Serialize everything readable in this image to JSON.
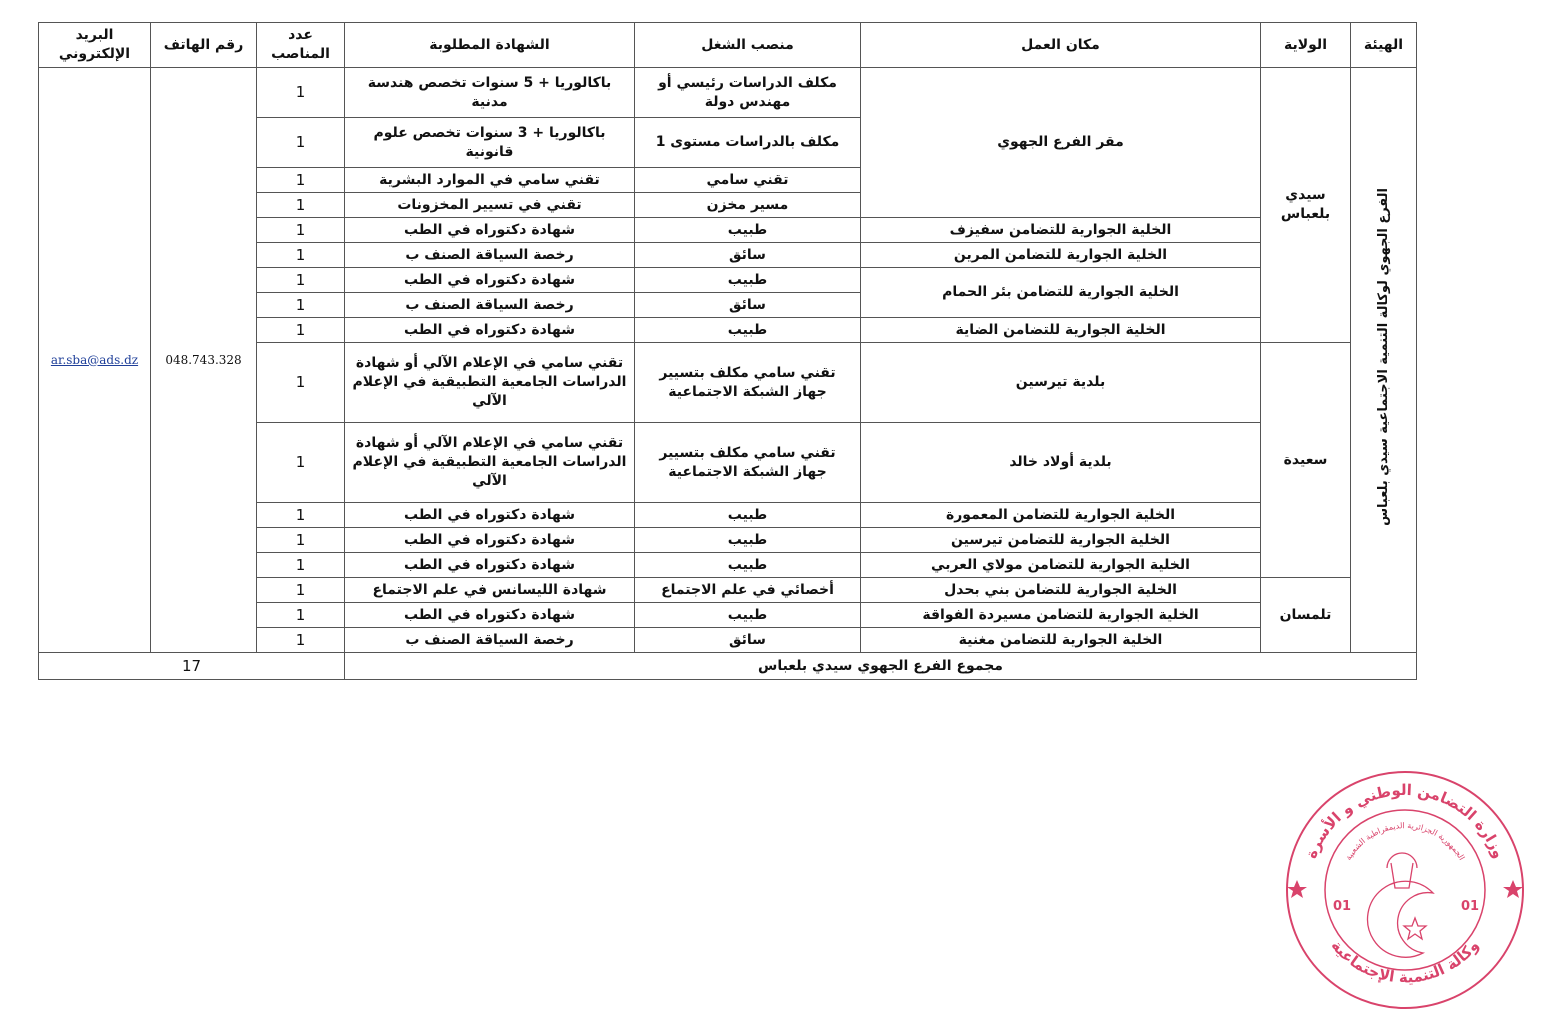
{
  "headers": {
    "body": "الهيئة",
    "wilaya": "الولاية",
    "workplace": "مكان العمل",
    "position": "منصب الشغل",
    "certificate": "الشهادة المطلوبة",
    "count": "عدد المناصب",
    "phone": "رقم الهاتف",
    "email": "البريد الإلكتروني"
  },
  "body_name": "الفرع الجهوي لوكالة التنمية الاجتماعية سيدي بلعباس",
  "phone": "048.743.328",
  "email": "ar.sba@ads.dz",
  "wilayas": [
    {
      "name": "سيدي بلعباس",
      "workplaces": [
        {
          "name": "مقر الفرع الجهوي",
          "positions": [
            {
              "title": "مكلف الدراسات رئيسي أو مهندس دولة",
              "certificate": "باكالوريا + 5 سنوات تخصص هندسة مدنية",
              "count": "1"
            },
            {
              "title": "مكلف بالدراسات مستوى 1",
              "certificate": "باكالوريا + 3 سنوات تخصص علوم قانونية",
              "count": "1"
            },
            {
              "title": "تقني سامي",
              "certificate": "تقني سامي في الموارد البشرية",
              "count": "1"
            },
            {
              "title": "مسير مخزن",
              "certificate": "تقني في تسيير المخزونات",
              "count": "1"
            }
          ]
        },
        {
          "name": "الخلية الجوارية للتضامن سفيزف",
          "positions": [
            {
              "title": "طبيب",
              "certificate": "شهادة دكتوراه في الطب",
              "count": "1"
            }
          ]
        },
        {
          "name": "الخلية الجوارية للتضامن المرين",
          "positions": [
            {
              "title": "سائق",
              "certificate": "رخصة السياقة الصنف ب",
              "count": "1"
            }
          ]
        },
        {
          "name": "الخلية الجوارية للتضامن بئر الحمام",
          "positions": [
            {
              "title": "طبيب",
              "certificate": "شهادة دكتوراه في الطب",
              "count": "1"
            },
            {
              "title": "سائق",
              "certificate": "رخصة السياقة الصنف ب",
              "count": "1"
            }
          ]
        },
        {
          "name": "الخلية الجوارية للتضامن الضاية",
          "positions": [
            {
              "title": "طبيب",
              "certificate": "شهادة دكتوراه في الطب",
              "count": "1"
            }
          ]
        }
      ]
    },
    {
      "name": "سعيدة",
      "workplaces": [
        {
          "name": "بلدية تيرسين",
          "positions": [
            {
              "title": "تقني سامي مكلف بتسيير جهاز الشبكة الاجتماعية",
              "certificate": "تقني سامي في الإعلام الآلي أو شهادة الدراسات الجامعية التطبيقية في الإعلام الآلي",
              "count": "1"
            }
          ]
        },
        {
          "name": "بلدية أولاد خالد",
          "positions": [
            {
              "title": "تقني سامي مكلف بتسيير جهاز الشبكة الاجتماعية",
              "certificate": "تقني سامي في الإعلام الآلي أو شهادة الدراسات الجامعية التطبيقية في الإعلام الآلي",
              "count": "1"
            }
          ]
        },
        {
          "name": "الخلية الجوارية للتضامن المعمورة",
          "positions": [
            {
              "title": "طبيب",
              "certificate": "شهادة دكتوراه في الطب",
              "count": "1"
            }
          ]
        },
        {
          "name": "الخلية الجوارية للتضامن تيرسين",
          "positions": [
            {
              "title": "طبيب",
              "certificate": "شهادة دكتوراه في الطب",
              "count": "1"
            }
          ]
        },
        {
          "name": "الخلية الجوارية للتضامن مولاي العربي",
          "positions": [
            {
              "title": "طبيب",
              "certificate": "شهادة دكتوراه في الطب",
              "count": "1"
            }
          ]
        }
      ]
    },
    {
      "name": "تلمسان",
      "workplaces": [
        {
          "name": "الخلية الجوارية للتضامن بني بحدل",
          "positions": [
            {
              "title": "أخصائي في علم الاجتماع",
              "certificate": "شهادة الليسانس في علم الاجتماع",
              "count": "1"
            }
          ]
        },
        {
          "name": "الخلية الجوارية للتضامن مسيردة الفواقة",
          "positions": [
            {
              "title": "طبيب",
              "certificate": "شهادة دكتوراه في الطب",
              "count": "1"
            }
          ]
        },
        {
          "name": "الخلية الجوارية للتضامن مغنية",
          "positions": [
            {
              "title": "سائق",
              "certificate": "رخصة السياقة الصنف ب",
              "count": "1"
            }
          ]
        }
      ]
    }
  ],
  "total": {
    "label": "مجموع الفرع الجهوي سيدي بلعباس",
    "value": "17"
  },
  "stamp": {
    "outer_top": "وزارة التضامن الوطني و الأسرة",
    "outer_bottom": "وكالة التنمية الإجتماعية",
    "inner": "الجمهورية الجزائرية الديمقراطية الشعبية",
    "code": "01",
    "color": "#d9436b"
  }
}
